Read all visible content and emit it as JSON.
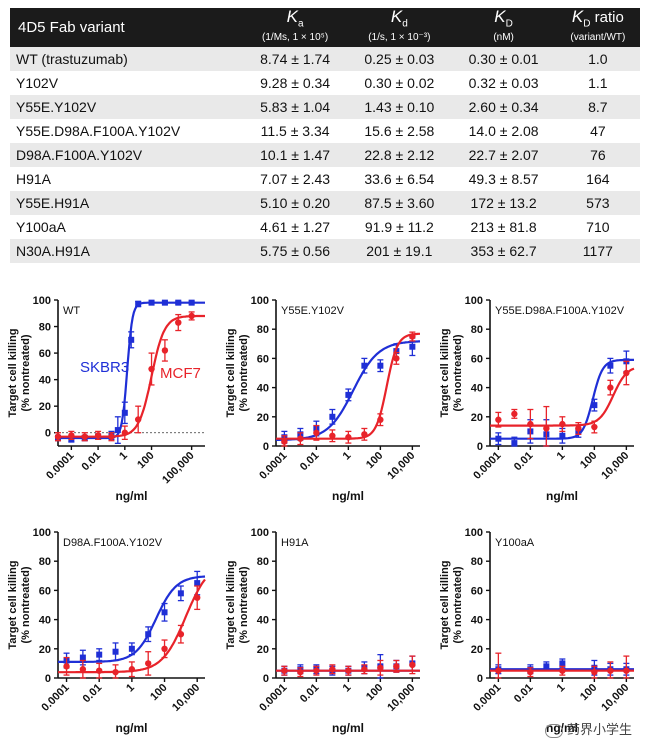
{
  "table": {
    "headers": {
      "variant": "4D5 Fab variant",
      "ka": {
        "symbol": "K",
        "sub": "a",
        "unit": "(1/Ms, 1 × 10⁵)"
      },
      "kd": {
        "symbol": "K",
        "sub": "d",
        "unit": "(1/s, 1 × 10⁻³)"
      },
      "KD": {
        "symbol": "K",
        "sub": "D",
        "unit": "(nM)"
      },
      "ratio": {
        "symbol": "K",
        "sub": "D",
        "suffix": " ratio",
        "unit": "(variant/WT)"
      }
    },
    "rows": [
      {
        "variant": "WT (trastuzumab)",
        "ka": "8.74 ± 1.74",
        "kd": "0.25 ± 0.03",
        "KD": "0.30 ± 0.01",
        "ratio": "1.0"
      },
      {
        "variant": "Y102V",
        "ka": "9.28 ± 0.34",
        "kd": "0.30 ± 0.02",
        "KD": "0.32 ± 0.03",
        "ratio": "1.1"
      },
      {
        "variant": "Y55E.Y102V",
        "ka": "5.83 ± 1.04",
        "kd": "1.43 ± 0.10",
        "KD": "2.60 ± 0.34",
        "ratio": "8.7"
      },
      {
        "variant": "Y55E.D98A.F100A.Y102V",
        "ka": "11.5 ± 3.34",
        "kd": "15.6 ± 2.58",
        "KD": "14.0 ± 2.08",
        "ratio": "47"
      },
      {
        "variant": "D98A.F100A.Y102V",
        "ka": "10.1 ± 1.47",
        "kd": "22.8 ± 2.12",
        "KD": "22.7 ± 2.07",
        "ratio": "76"
      },
      {
        "variant": "H91A",
        "ka": "7.07 ± 2.43",
        "kd": "33.6 ± 6.54",
        "KD": "49.3 ± 8.57",
        "ratio": "164"
      },
      {
        "variant": "Y55E.H91A",
        "ka": "5.10 ± 0.20",
        "kd": "87.5 ± 3.60",
        "KD": "172 ± 13.2",
        "ratio": "573"
      },
      {
        "variant": "Y100aA",
        "ka": "4.61 ± 1.27",
        "kd": "91.9 ± 11.2",
        "KD": "213 ± 81.8",
        "ratio": "710"
      },
      {
        "variant": "N30A.H91A",
        "ka": "5.75 ± 0.56",
        "kd": "201 ± 19.1",
        "KD": "353 ± 62.7",
        "ratio": "1177"
      }
    ]
  },
  "colors": {
    "skbr3": "#1f2fd6",
    "mcf7": "#e8232a",
    "axis": "#111111",
    "header_bg": "#1b1b1b"
  },
  "chart_data": [
    {
      "type": "scatter",
      "title": "WT",
      "xscale": "log",
      "xlabel": "ng/ml",
      "ylabel": "Target cell killing (% nontreated)",
      "xlim": [
        1e-05,
        1000000
      ],
      "ylim": [
        -10,
        100
      ],
      "xticks": [
        0.0001,
        0.01,
        1,
        100,
        100000
      ],
      "xticklabels": [
        "0.0001",
        "0.01",
        "1",
        "100",
        "100,000"
      ],
      "yticks": [
        0,
        20,
        40,
        60,
        80,
        100
      ],
      "zero_line": true,
      "series_labels": [
        {
          "name": "SKBR3",
          "color_key": "skbr3"
        },
        {
          "name": "MCF7",
          "color_key": "mcf7"
        }
      ],
      "series": [
        {
          "name": "SKBR3",
          "color_key": "skbr3",
          "x": [
            1e-05,
            0.0001,
            0.001,
            0.01,
            0.1,
            0.3,
            1,
            3,
            10,
            100,
            1000,
            10000,
            100000
          ],
          "y": [
            -4,
            -5,
            -4,
            -3,
            -2,
            2,
            15,
            70,
            97,
            98,
            98,
            98,
            98
          ],
          "err": [
            2,
            2,
            2,
            2,
            3,
            10,
            8,
            6,
            2,
            1,
            1,
            1,
            1
          ],
          "fit": {
            "bottom": -4,
            "top": 98,
            "ec50": 1.5,
            "hill": 2.2
          }
        },
        {
          "name": "MCF7",
          "color_key": "mcf7",
          "x": [
            1e-05,
            0.0001,
            0.001,
            0.01,
            0.1,
            1,
            10,
            100,
            1000,
            10000,
            100000
          ],
          "y": [
            -3,
            -2,
            -3,
            -2,
            -3,
            0,
            10,
            48,
            62,
            83,
            88
          ],
          "err": [
            3,
            3,
            3,
            3,
            3,
            5,
            10,
            12,
            8,
            6,
            3
          ],
          "fit": {
            "bottom": -3,
            "top": 88,
            "ec50": 100,
            "hill": 0.9
          }
        }
      ]
    },
    {
      "type": "scatter",
      "title": "Y55E.Y102V",
      "xscale": "log",
      "xlabel": "ng/ml",
      "ylabel": "Target cell killing (% nontreated)",
      "xlim": [
        3e-05,
        30000
      ],
      "ylim": [
        0,
        100
      ],
      "xticks": [
        0.0001,
        0.01,
        1,
        100,
        10000
      ],
      "xticklabels": [
        "0.0001",
        "0.01",
        "1",
        "100",
        "10,000"
      ],
      "yticks": [
        0,
        20,
        40,
        60,
        80,
        100
      ],
      "zero_line": false,
      "series": [
        {
          "name": "SKBR3",
          "color_key": "skbr3",
          "x": [
            0.0001,
            0.001,
            0.01,
            0.1,
            1,
            10,
            100,
            1000,
            10000
          ],
          "y": [
            6,
            8,
            12,
            20,
            35,
            55,
            55,
            65,
            68
          ],
          "err": [
            4,
            4,
            5,
            5,
            4,
            5,
            4,
            5,
            6
          ],
          "fit": {
            "bottom": 4,
            "top": 72,
            "ec50": 2,
            "hill": 0.55
          }
        },
        {
          "name": "MCF7",
          "color_key": "mcf7",
          "x": [
            0.0001,
            0.001,
            0.01,
            0.1,
            1,
            10,
            100,
            1000,
            10000
          ],
          "y": [
            3,
            5,
            9,
            7,
            6,
            8,
            18,
            60,
            75
          ],
          "err": [
            4,
            4,
            5,
            4,
            4,
            4,
            4,
            4,
            3
          ],
          "fit": {
            "bottom": 5,
            "top": 77,
            "ec50": 250,
            "hill": 1.3
          }
        }
      ]
    },
    {
      "type": "scatter",
      "title": "Y55E.D98A.F100A.Y102V",
      "xscale": "log",
      "xlabel": "ng/ml",
      "ylabel": "Target cell killing (% nontreated)",
      "xlim": [
        3e-05,
        30000
      ],
      "ylim": [
        0,
        100
      ],
      "xticks": [
        0.0001,
        0.01,
        1,
        100,
        10000
      ],
      "xticklabels": [
        "0.0001",
        "0.01",
        "1",
        "100",
        "10,000"
      ],
      "yticks": [
        0,
        20,
        40,
        60,
        80,
        100
      ],
      "zero_line": false,
      "series": [
        {
          "name": "SKBR3",
          "color_key": "skbr3",
          "x": [
            0.0001,
            0.001,
            0.01,
            0.1,
            1,
            10,
            100,
            1000,
            10000
          ],
          "y": [
            5,
            2,
            10,
            8,
            7,
            10,
            28,
            55,
            58
          ],
          "err": [
            4,
            4,
            8,
            10,
            5,
            4,
            4,
            5,
            7
          ],
          "fit": {
            "bottom": 5,
            "top": 59,
            "ec50": 80,
            "hill": 1.4
          }
        },
        {
          "name": "MCF7",
          "color_key": "mcf7",
          "x": [
            0.0001,
            0.001,
            0.01,
            0.1,
            1,
            10,
            100,
            1000,
            10000
          ],
          "y": [
            18,
            22,
            15,
            12,
            15,
            12,
            13,
            40,
            50
          ],
          "err": [
            5,
            3,
            10,
            15,
            5,
            4,
            4,
            5,
            8
          ],
          "fit": {
            "bottom": 14,
            "top": 55,
            "ec50": 1500,
            "hill": 1.0
          }
        }
      ]
    },
    {
      "type": "scatter",
      "title": "D98A.F100A.Y102V",
      "xscale": "log",
      "xlabel": "ng/ml",
      "ylabel": "Target cell killing (% nontreated)",
      "xlim": [
        3e-05,
        30000
      ],
      "ylim": [
        0,
        100
      ],
      "xticks": [
        0.0001,
        0.01,
        1,
        100,
        10000
      ],
      "xticklabels": [
        "0.0001",
        "0.01",
        "1",
        "100",
        "10,000"
      ],
      "yticks": [
        0,
        20,
        40,
        60,
        80,
        100
      ],
      "zero_line": false,
      "series": [
        {
          "name": "SKBR3",
          "color_key": "skbr3",
          "x": [
            0.0001,
            0.001,
            0.01,
            0.1,
            1,
            10,
            100,
            1000,
            10000
          ],
          "y": [
            12,
            14,
            16,
            18,
            20,
            30,
            45,
            58,
            65
          ],
          "err": [
            5,
            5,
            4,
            6,
            4,
            5,
            6,
            5,
            8
          ],
          "fit": {
            "bottom": 11,
            "top": 70,
            "ec50": 30,
            "hill": 0.7
          }
        },
        {
          "name": "MCF7",
          "color_key": "mcf7",
          "x": [
            0.0001,
            0.001,
            0.01,
            0.1,
            1,
            10,
            100,
            1000,
            10000
          ],
          "y": [
            8,
            6,
            5,
            4,
            6,
            10,
            20,
            30,
            55
          ],
          "err": [
            6,
            6,
            5,
            5,
            5,
            8,
            6,
            6,
            8
          ],
          "fit": {
            "bottom": 4,
            "top": 80,
            "ec50": 2000,
            "hill": 0.6
          }
        }
      ]
    },
    {
      "type": "scatter",
      "title": "H91A",
      "xscale": "log",
      "xlabel": "ng/ml",
      "ylabel": "Target cell killing (% nontreated)",
      "xlim": [
        3e-05,
        30000
      ],
      "ylim": [
        0,
        100
      ],
      "xticks": [
        0.0001,
        0.01,
        1,
        100,
        10000
      ],
      "xticklabels": [
        "0.0001",
        "0.01",
        "1",
        "100",
        "10,000"
      ],
      "yticks": [
        0,
        20,
        40,
        60,
        80,
        100
      ],
      "zero_line": false,
      "series": [
        {
          "name": "SKBR3",
          "color_key": "skbr3",
          "x": [
            0.0001,
            0.001,
            0.01,
            0.1,
            1,
            10,
            100,
            1000,
            10000
          ],
          "y": [
            5,
            6,
            6,
            5,
            5,
            7,
            8,
            8,
            10
          ],
          "err": [
            3,
            3,
            3,
            3,
            3,
            4,
            8,
            4,
            5
          ],
          "fit": {
            "bottom": 5,
            "top": 5,
            "ec50": 1,
            "hill": 1
          }
        },
        {
          "name": "MCF7",
          "color_key": "mcf7",
          "x": [
            0.0001,
            0.001,
            0.01,
            0.1,
            1,
            10,
            100,
            1000,
            10000
          ],
          "y": [
            5,
            4,
            5,
            6,
            5,
            6,
            7,
            8,
            9
          ],
          "err": [
            3,
            3,
            3,
            3,
            3,
            3,
            5,
            4,
            6
          ],
          "fit": {
            "bottom": 5,
            "top": 5,
            "ec50": 1,
            "hill": 1
          }
        }
      ]
    },
    {
      "type": "scatter",
      "title": "Y100aA",
      "xscale": "log",
      "xlabel": "ng/ml",
      "ylabel": "Target cell killing (% nontreated)",
      "xlim": [
        3e-05,
        30000
      ],
      "ylim": [
        0,
        100
      ],
      "xticks": [
        0.0001,
        0.01,
        1,
        100,
        10000
      ],
      "xticklabels": [
        "0.0001",
        "0.01",
        "1",
        "100",
        "10,000"
      ],
      "yticks": [
        0,
        20,
        40,
        60,
        80,
        100
      ],
      "zero_line": false,
      "series": [
        {
          "name": "SKBR3",
          "color_key": "skbr3",
          "x": [
            0.0001,
            0.01,
            0.1,
            1,
            100,
            1000,
            10000
          ],
          "y": [
            6,
            6,
            8,
            10,
            7,
            6,
            6
          ],
          "err": [
            3,
            3,
            3,
            3,
            5,
            4,
            4
          ],
          "fit": {
            "bottom": 6,
            "top": 6,
            "ec50": 1,
            "hill": 1
          }
        },
        {
          "name": "MCF7",
          "color_key": "mcf7",
          "x": [
            0.0001,
            0.01,
            1,
            100,
            1000,
            10000
          ],
          "y": [
            5,
            4,
            5,
            4,
            5,
            5
          ],
          "err": [
            12,
            3,
            3,
            4,
            6,
            10
          ],
          "fit": {
            "bottom": 5,
            "top": 5,
            "ec50": 1,
            "hill": 1
          }
        }
      ]
    }
  ],
  "watermark": "药界小学生"
}
